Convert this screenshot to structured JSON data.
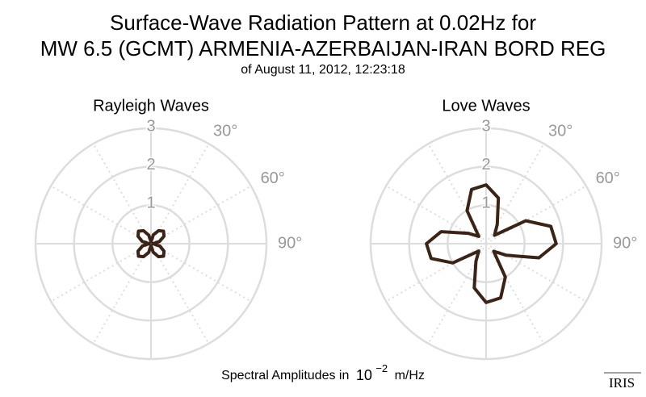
{
  "header": {
    "title_lines": [
      "Surface-Wave Radiation Pattern at 0.02Hz for",
      "MW 6.5 (GCMT) ARMENIA-AZERBAIJAN-IRAN BORD REG"
    ],
    "subtitle": "of August 11, 2012, 12:23:18"
  },
  "chart_data": [
    {
      "type": "polar",
      "title": "Rayleigh Waves",
      "color": "#3b2416",
      "theta": [
        0,
        15,
        30,
        45,
        60,
        75,
        90,
        105,
        120,
        135,
        150,
        165,
        180,
        195,
        210,
        225,
        240,
        255,
        270,
        285,
        300,
        315,
        330,
        345
      ],
      "values": [
        0.05,
        0.24,
        0.39,
        0.46,
        0.39,
        0.23,
        0.05,
        0.24,
        0.39,
        0.46,
        0.39,
        0.23,
        0.05,
        0.24,
        0.39,
        0.46,
        0.39,
        0.23,
        0.05,
        0.24,
        0.39,
        0.46,
        0.39,
        0.23
      ],
      "rlim": [
        0,
        3
      ],
      "rticks": [
        1,
        2,
        3
      ],
      "thetaticks": [
        {
          "value": 30,
          "label": "30°"
        },
        {
          "value": 60,
          "label": "60°"
        },
        {
          "value": 90,
          "label": "90°"
        }
      ]
    },
    {
      "type": "polar",
      "title": "Love Waves",
      "color": "#3b2416",
      "theta": [
        0,
        15,
        30,
        45,
        60,
        75,
        90,
        105,
        120,
        135,
        150,
        165,
        180,
        195,
        210,
        225,
        240,
        255,
        270,
        285,
        300,
        315,
        330,
        345
      ],
      "values": [
        1.53,
        1.23,
        0.58,
        0.31,
        1.19,
        1.74,
        1.82,
        1.42,
        0.6,
        0.28,
        1.0,
        1.46,
        1.53,
        1.19,
        0.53,
        0.27,
        1.0,
        1.48,
        1.55,
        1.21,
        0.54,
        0.27,
        0.99,
        1.46
      ],
      "rlim": [
        0,
        3
      ],
      "rticks": [
        1,
        2,
        3
      ],
      "thetaticks": [
        {
          "value": 30,
          "label": "30°"
        },
        {
          "value": 60,
          "label": "60°"
        },
        {
          "value": 90,
          "label": "90°"
        }
      ]
    }
  ],
  "footer": {
    "text": "Spectral Amplitudes in",
    "base": "10",
    "exponent": "−2",
    "unit": "m/Hz"
  },
  "logo": "IRIS"
}
